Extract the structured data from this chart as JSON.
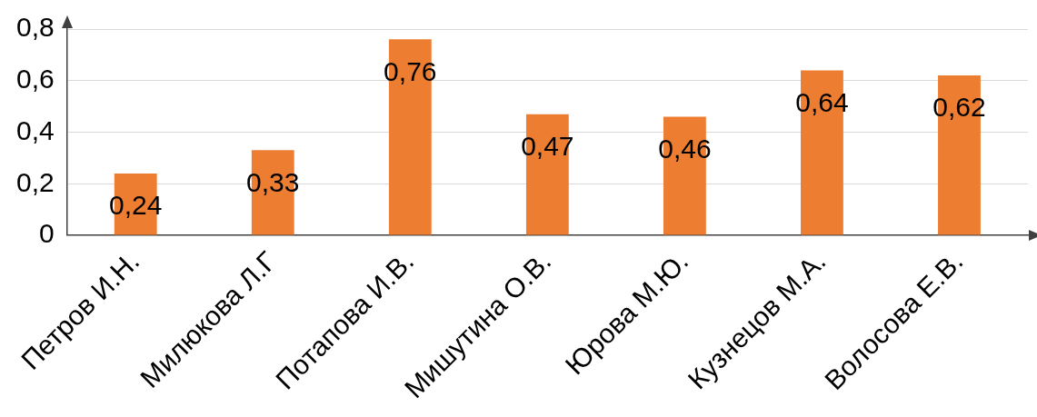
{
  "chart_data": {
    "type": "bar",
    "categories": [
      "Петров И.Н.",
      "Милюкова Л.Г",
      "Потапова И.В.",
      "Мишутина О.В.",
      "Юрова М.Ю.",
      "Кузнецов М.А.",
      "Волосова Е.В."
    ],
    "values": [
      0.24,
      0.33,
      0.76,
      0.47,
      0.46,
      0.64,
      0.62
    ],
    "value_labels": [
      "0,24",
      "0,33",
      "0,76",
      "0,47",
      "0,46",
      "0,64",
      "0,62"
    ],
    "color": "#ed7d31",
    "ylim": [
      0,
      0.8
    ],
    "yticks": [
      {
        "value": 0,
        "label": "0"
      },
      {
        "value": 0.2,
        "label": "0,2"
      },
      {
        "value": 0.4,
        "label": "0,4"
      },
      {
        "value": 0.6,
        "label": "0,6"
      },
      {
        "value": 0.8,
        "label": "0,8"
      }
    ],
    "grid": "y",
    "legend": false
  }
}
